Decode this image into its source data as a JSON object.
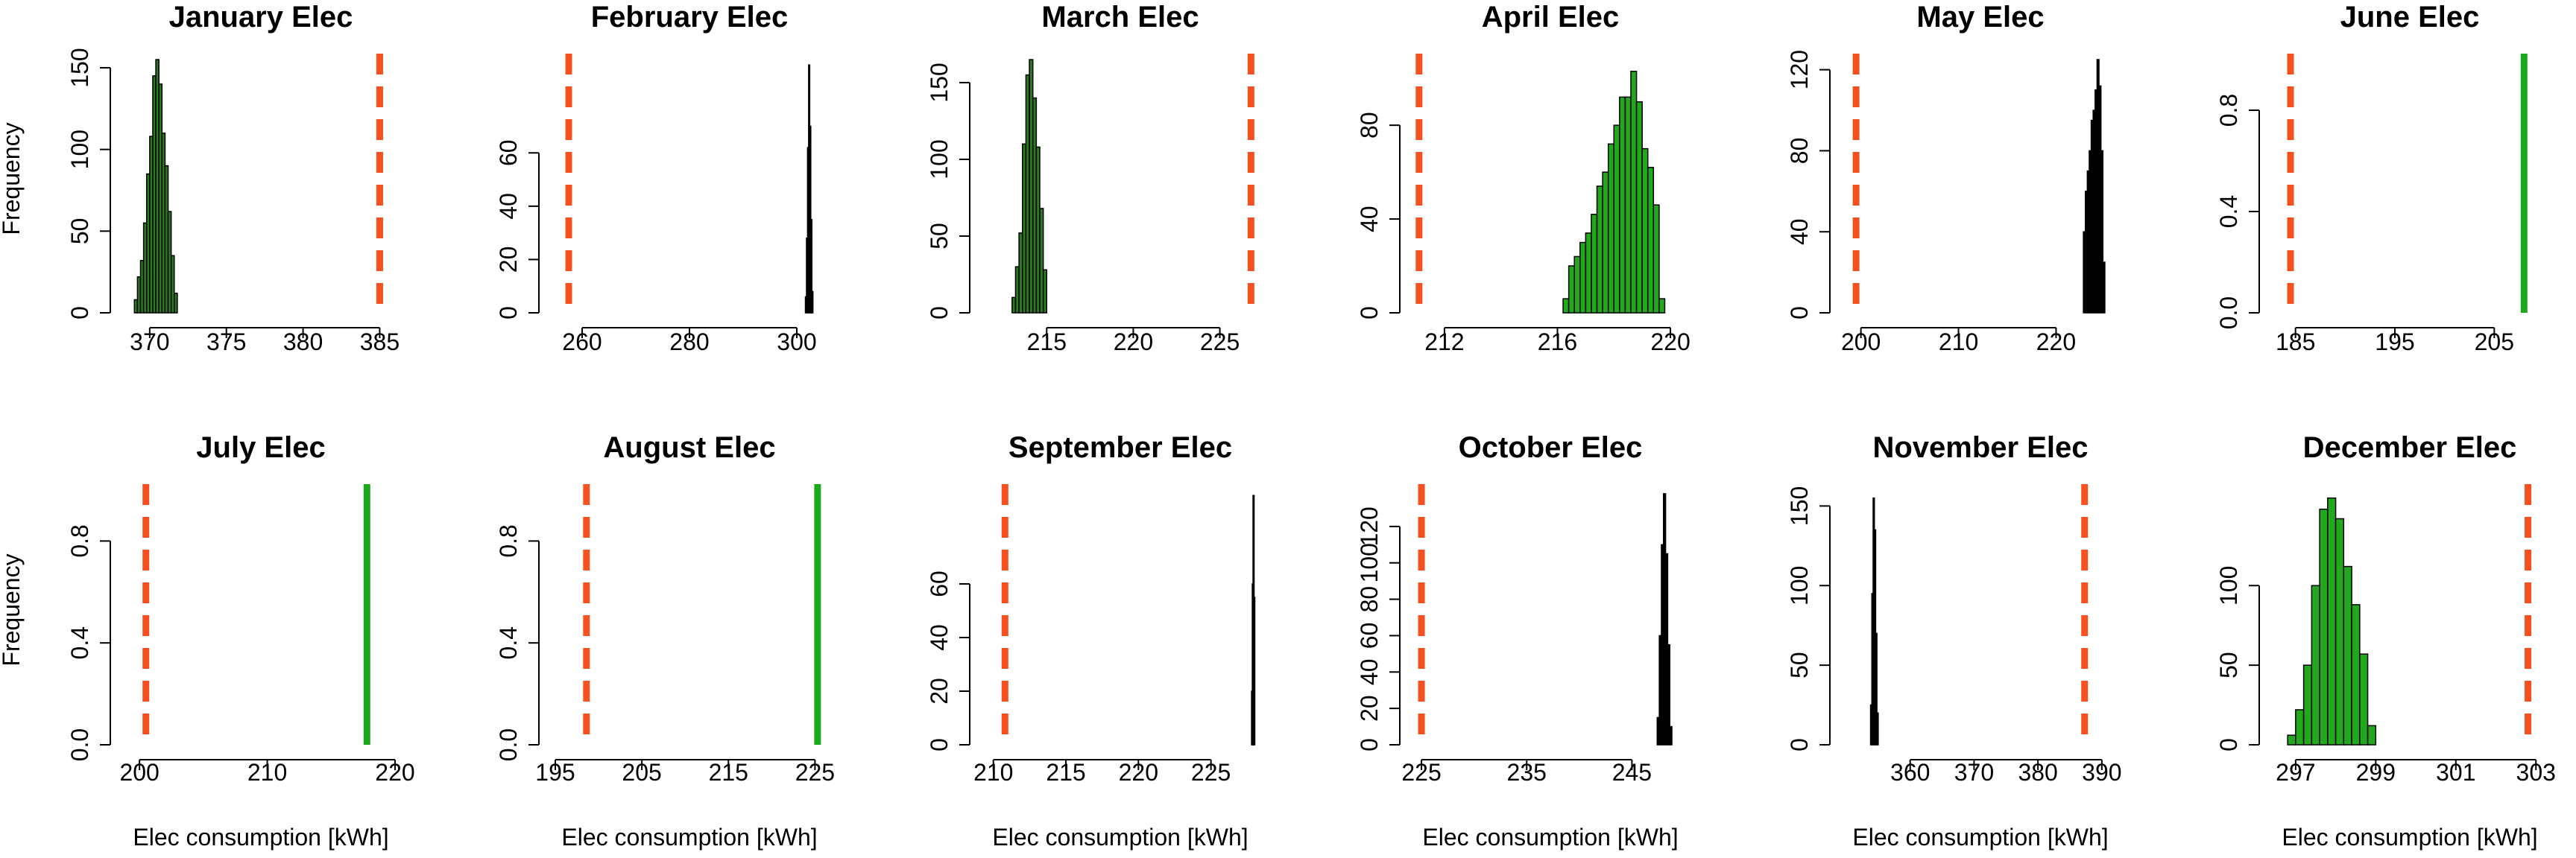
{
  "chart_data": [
    {
      "type": "bar",
      "title": "January Elec",
      "xlabel": "Elec consumption [kWh]",
      "ylabel": "Frequency",
      "xlim": [
        368.5,
        386
      ],
      "ylim": [
        0,
        155
      ],
      "xticks": [
        370,
        375,
        380,
        385
      ],
      "yticks": [
        0,
        50,
        100,
        150
      ],
      "hist_color": "#2a7a1f",
      "bin_width": 0.2,
      "bins": [
        {
          "start": 369.0,
          "count": 8
        },
        {
          "start": 369.2,
          "count": 22
        },
        {
          "start": 369.4,
          "count": 32
        },
        {
          "start": 369.6,
          "count": 55
        },
        {
          "start": 369.8,
          "count": 85
        },
        {
          "start": 370.0,
          "count": 108
        },
        {
          "start": 370.2,
          "count": 145
        },
        {
          "start": 370.4,
          "count": 155
        },
        {
          "start": 370.6,
          "count": 140
        },
        {
          "start": 370.8,
          "count": 110
        },
        {
          "start": 371.0,
          "count": 90
        },
        {
          "start": 371.2,
          "count": 62
        },
        {
          "start": 371.4,
          "count": 35
        },
        {
          "start": 371.6,
          "count": 12
        }
      ],
      "dashed_line_x": 385,
      "solid_line_x": null
    },
    {
      "type": "bar",
      "title": "February Elec",
      "xlabel": "Elec consumption [kWh]",
      "ylabel": "Frequency",
      "xlim": [
        255,
        305
      ],
      "ylim": [
        0,
        95
      ],
      "xticks": [
        260,
        280,
        300
      ],
      "yticks": [
        0,
        20,
        40,
        60
      ],
      "hist_color": "#000000",
      "bin_width": 0.2,
      "bins": [
        {
          "start": 301.6,
          "count": 6
        },
        {
          "start": 301.8,
          "count": 28
        },
        {
          "start": 302.0,
          "count": 62
        },
        {
          "start": 302.2,
          "count": 93
        },
        {
          "start": 302.4,
          "count": 70
        },
        {
          "start": 302.6,
          "count": 35
        },
        {
          "start": 302.8,
          "count": 8
        }
      ],
      "dashed_line_x": 257.5,
      "solid_line_x": null
    },
    {
      "type": "bar",
      "title": "March Elec",
      "xlabel": "Elec consumption [kWh]",
      "ylabel": "Frequency",
      "xlim": [
        211.5,
        227
      ],
      "ylim": [
        0,
        165
      ],
      "xticks": [
        215,
        220,
        225
      ],
      "yticks": [
        0,
        50,
        100,
        150
      ],
      "hist_color": "#2a7a1f",
      "bin_width": 0.2,
      "bins": [
        {
          "start": 213.0,
          "count": 10
        },
        {
          "start": 213.2,
          "count": 30
        },
        {
          "start": 213.4,
          "count": 52
        },
        {
          "start": 213.6,
          "count": 110
        },
        {
          "start": 213.8,
          "count": 155
        },
        {
          "start": 214.0,
          "count": 165
        },
        {
          "start": 214.2,
          "count": 140
        },
        {
          "start": 214.4,
          "count": 108
        },
        {
          "start": 214.6,
          "count": 68
        },
        {
          "start": 214.8,
          "count": 28
        }
      ],
      "dashed_line_x": 226.8,
      "solid_line_x": null
    },
    {
      "type": "bar",
      "title": "April Elec",
      "xlabel": "Elec consumption [kWh]",
      "ylabel": "Frequency",
      "xlim": [
        211,
        220.5
      ],
      "ylim": [
        0,
        108
      ],
      "xticks": [
        212,
        216,
        220
      ],
      "yticks": [
        0,
        40,
        80
      ],
      "hist_color": "#22a81c",
      "bin_width": 0.2,
      "bins": [
        {
          "start": 216.2,
          "count": 6
        },
        {
          "start": 216.4,
          "count": 20
        },
        {
          "start": 216.6,
          "count": 24
        },
        {
          "start": 216.8,
          "count": 30
        },
        {
          "start": 217.0,
          "count": 34
        },
        {
          "start": 217.2,
          "count": 42
        },
        {
          "start": 217.4,
          "count": 54
        },
        {
          "start": 217.6,
          "count": 60
        },
        {
          "start": 217.8,
          "count": 72
        },
        {
          "start": 218.0,
          "count": 80
        },
        {
          "start": 218.2,
          "count": 92
        },
        {
          "start": 218.4,
          "count": 92
        },
        {
          "start": 218.6,
          "count": 103
        },
        {
          "start": 218.8,
          "count": 90
        },
        {
          "start": 219.0,
          "count": 70
        },
        {
          "start": 219.2,
          "count": 62
        },
        {
          "start": 219.4,
          "count": 46
        },
        {
          "start": 219.6,
          "count": 6
        }
      ],
      "dashed_line_x": 211.1,
      "solid_line_x": null
    },
    {
      "type": "bar",
      "title": "May Elec",
      "xlabel": "Elec consumption [kWh]",
      "ylabel": "Frequency",
      "xlim": [
        198.5,
        226
      ],
      "ylim": [
        0,
        125
      ],
      "xticks": [
        200,
        210,
        220
      ],
      "yticks": [
        0,
        40,
        80,
        120
      ],
      "hist_color": "#000000",
      "bin_width": 0.2,
      "bins": [
        {
          "start": 222.8,
          "count": 40
        },
        {
          "start": 223.0,
          "count": 60
        },
        {
          "start": 223.2,
          "count": 70
        },
        {
          "start": 223.4,
          "count": 80
        },
        {
          "start": 223.6,
          "count": 95
        },
        {
          "start": 223.8,
          "count": 100
        },
        {
          "start": 224.0,
          "count": 110
        },
        {
          "start": 224.2,
          "count": 125
        },
        {
          "start": 224.4,
          "count": 112
        },
        {
          "start": 224.6,
          "count": 80
        },
        {
          "start": 224.8,
          "count": 25
        }
      ],
      "dashed_line_x": 199.5,
      "solid_line_x": null
    },
    {
      "type": "bar",
      "title": "June Elec",
      "xlabel": "Elec consumption [kWh]",
      "ylabel": "Frequency",
      "xlim": [
        183,
        210
      ],
      "ylim": [
        0,
        1
      ],
      "xticks": [
        185,
        195,
        205
      ],
      "yticks": [
        0.0,
        0.4,
        0.8
      ],
      "hist_color": "#22a81c",
      "bin_width": 0.2,
      "bins": [],
      "dashed_line_x": 184.5,
      "solid_line_x": 208
    },
    {
      "type": "bar",
      "title": "July Elec",
      "xlabel": "Elec consumption [kWh]",
      "ylabel": "Frequency",
      "xlim": [
        199,
        220
      ],
      "ylim": [
        0,
        1
      ],
      "xticks": [
        200,
        210,
        220
      ],
      "yticks": [
        0.0,
        0.4,
        0.8
      ],
      "hist_color": "#22a81c",
      "bin_width": 0.2,
      "bins": [],
      "dashed_line_x": 200.5,
      "solid_line_x": 217.8
    },
    {
      "type": "bar",
      "title": "August Elec",
      "xlabel": "Elec consumption [kWh]",
      "ylabel": "Frequency",
      "xlim": [
        195,
        226
      ],
      "ylim": [
        0,
        1
      ],
      "xticks": [
        195,
        205,
        215,
        225
      ],
      "yticks": [
        0.0,
        0.4,
        0.8
      ],
      "hist_color": "#22a81c",
      "bin_width": 0.2,
      "bins": [],
      "dashed_line_x": 198.6,
      "solid_line_x": 225.3
    },
    {
      "type": "bar",
      "title": "September Elec",
      "xlabel": "Elec consumption [kWh]",
      "ylabel": "Frequency",
      "xlim": [
        209.5,
        228
      ],
      "ylim": [
        0,
        95
      ],
      "xticks": [
        210,
        215,
        220,
        225
      ],
      "yticks": [
        0,
        20,
        40,
        60
      ],
      "hist_color": "#000000",
      "bin_width": 0.05,
      "bins": [
        {
          "start": 227.8,
          "count": 20
        },
        {
          "start": 227.85,
          "count": 60
        },
        {
          "start": 227.9,
          "count": 93
        },
        {
          "start": 227.95,
          "count": 55
        }
      ],
      "dashed_line_x": 210.8,
      "solid_line_x": null
    },
    {
      "type": "bar",
      "title": "October Elec",
      "xlabel": "Elec consumption [kWh]",
      "ylabel": "Frequency",
      "xlim": [
        224.5,
        250
      ],
      "ylim": [
        0,
        140
      ],
      "xticks": [
        225,
        235,
        245
      ],
      "yticks": [
        0,
        20,
        40,
        60,
        80,
        100,
        120
      ],
      "hist_color": "#000000",
      "bin_width": 0.2,
      "bins": [
        {
          "start": 247.4,
          "count": 15
        },
        {
          "start": 247.6,
          "count": 60
        },
        {
          "start": 247.8,
          "count": 110
        },
        {
          "start": 248.0,
          "count": 138
        },
        {
          "start": 248.2,
          "count": 105
        },
        {
          "start": 248.4,
          "count": 55
        },
        {
          "start": 248.6,
          "count": 10
        }
      ],
      "dashed_line_x": 225,
      "solid_line_x": null
    },
    {
      "type": "bar",
      "title": "November Elec",
      "xlabel": "Elec consumption [kWh]",
      "ylabel": "Frequency",
      "xlim": [
        350,
        392
      ],
      "ylim": [
        0,
        160
      ],
      "xticks": [
        360,
        370,
        380,
        390
      ],
      "yticks": [
        0,
        50,
        100,
        150
      ],
      "hist_color": "#000000",
      "bin_width": 0.2,
      "bins": [
        {
          "start": 353.8,
          "count": 25
        },
        {
          "start": 354.0,
          "count": 95
        },
        {
          "start": 354.2,
          "count": 155
        },
        {
          "start": 354.4,
          "count": 135
        },
        {
          "start": 354.6,
          "count": 70
        },
        {
          "start": 354.8,
          "count": 20
        }
      ],
      "dashed_line_x": 387.3,
      "solid_line_x": null
    },
    {
      "type": "bar",
      "title": "December Elec",
      "xlabel": "Elec consumption [kWh]",
      "ylabel": "Frequency",
      "xlim": [
        296.5,
        303.2
      ],
      "ylim": [
        0,
        160
      ],
      "xticks": [
        297,
        299,
        301,
        303
      ],
      "yticks": [
        0,
        50,
        100
      ],
      "hist_color": "#22a81c",
      "bin_width": 0.2,
      "bins": [
        {
          "start": 296.8,
          "count": 6
        },
        {
          "start": 297.0,
          "count": 22
        },
        {
          "start": 297.2,
          "count": 50
        },
        {
          "start": 297.4,
          "count": 100
        },
        {
          "start": 297.6,
          "count": 148
        },
        {
          "start": 297.8,
          "count": 155
        },
        {
          "start": 298.0,
          "count": 142
        },
        {
          "start": 298.2,
          "count": 112
        },
        {
          "start": 298.4,
          "count": 88
        },
        {
          "start": 298.6,
          "count": 57
        },
        {
          "start": 298.8,
          "count": 12
        }
      ],
      "dashed_line_x": 302.8,
      "solid_line_x": null
    }
  ],
  "style": {
    "dashed_line_color": "#f4511e",
    "solid_line_color": "#1ca81c",
    "bar_border_color": "#000000"
  }
}
